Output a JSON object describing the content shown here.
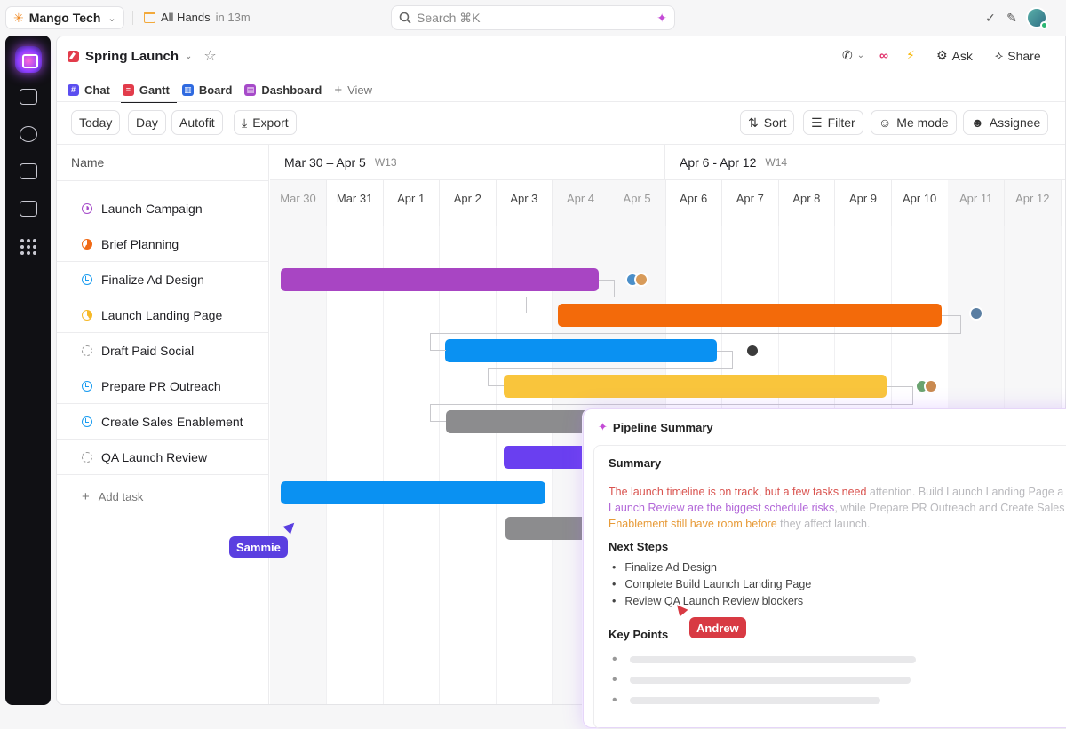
{
  "topbar": {
    "workspace": "Mango Tech",
    "meeting_title": "All Hands",
    "meeting_time": "in 13m",
    "search_placeholder": "Search ⌘K"
  },
  "project": {
    "title": "Spring Launch",
    "actions": {
      "ask": "Ask",
      "share": "Share"
    }
  },
  "tabs": [
    "Chat",
    "Gantt",
    "Board",
    "Dashboard"
  ],
  "add_view": "View",
  "toolbar": {
    "today": "Today",
    "day": "Day",
    "autofit": "Autofit",
    "export": "Export",
    "sort": "Sort",
    "filter": "Filter",
    "me_mode": "Me mode",
    "assignee": "Assignee"
  },
  "name_header": "Name",
  "tasks": [
    {
      "name": "Launch Campaign",
      "status": "purple"
    },
    {
      "name": "Brief Planning",
      "status": "orange"
    },
    {
      "name": "Finalize Ad Design",
      "status": "blue"
    },
    {
      "name": "Launch Landing Page",
      "status": "yellow"
    },
    {
      "name": "Draft Paid Social",
      "status": "dash"
    },
    {
      "name": "Prepare PR Outreach",
      "status": "blue"
    },
    {
      "name": "Create Sales Enablement",
      "status": "blue"
    },
    {
      "name": "QA Launch Review",
      "status": "dash"
    }
  ],
  "add_task": "Add task",
  "weeks": [
    {
      "range": "Mar 30 – Apr 5",
      "label": "W13"
    },
    {
      "range": "Apr 6 - Apr 12",
      "label": "W14"
    }
  ],
  "days": [
    "Mar 30",
    "Mar 31",
    "Apr 1",
    "Apr 2",
    "Apr 3",
    "Apr 4",
    "Apr 5",
    "Apr 6",
    "Apr 7",
    "Apr 8",
    "Apr 9",
    "Apr 10",
    "Apr 11",
    "Apr 12"
  ],
  "weekend_days": [
    0,
    5,
    6,
    12,
    13
  ],
  "bar_colors": {
    "purple": "#a845c3",
    "orange": "#f36a0a",
    "blue": "#0a91f2",
    "yellow": "#f9c53c",
    "gray": "#8c8c8e",
    "indigo": "#6a3ff0"
  },
  "cursors": {
    "sammie": "Sammie",
    "andrew": "Andrew"
  },
  "summary_panel": {
    "title": "Pipeline Summary",
    "summary_heading": "Summary",
    "summary_line1a": "The launch timeline is on track, but a few tasks need",
    "summary_line1b": "attention. Build Launch Landing Page a",
    "summary_line2a": "Launch Review are the biggest schedule risks",
    "summary_line2b": ", while Prepare PR Outreach and Create Sales",
    "summary_line3a": "Enablement still have room before",
    "summary_line3b": " they affect launch.",
    "next_steps_heading": "Next Steps",
    "next_steps": [
      "Finalize Ad Design",
      "Complete Build Launch Landing Page",
      "Review QA Launch Review blockers"
    ],
    "key_points_heading": "Key Points"
  }
}
